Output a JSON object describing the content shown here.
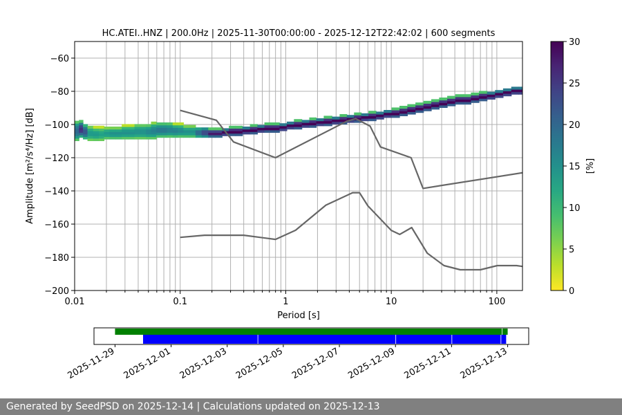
{
  "chart_data": [
    {
      "type": "heatmap",
      "title": "HC.ATEI..HNZ | 200.0Hz | 2025-11-30T00:00:00 - 2025-12-12T22:42:02 | 600 segments",
      "xlabel": "Period [s]",
      "ylabel": "Amplitude [m²/s⁴/Hz] [dB]",
      "x_scale": "log",
      "xlim": [
        0.01,
        175
      ],
      "ylim": [
        -200,
        -50
      ],
      "x_ticks": [
        0.01,
        0.1,
        1,
        10,
        100
      ],
      "x_tick_labels": [
        "0.01",
        "0.1",
        "1",
        "10",
        "100"
      ],
      "y_ticks": [
        -200,
        -180,
        -160,
        -140,
        -120,
        -100,
        -80,
        -60
      ],
      "y_tick_labels": [
        "−200",
        "−180",
        "−160",
        "−140",
        "−120",
        "−100",
        "−80",
        "−60"
      ],
      "grid": "x-major-and-minor",
      "colormap": "viridis_r",
      "colorbar": {
        "label": "[%]",
        "range": [
          0,
          30
        ],
        "ticks": [
          0,
          5,
          10,
          15,
          20,
          25,
          30
        ],
        "tick_labels": [
          "0",
          "5",
          "10",
          "15",
          "20",
          "25",
          "30"
        ]
      },
      "mode_curve": [
        {
          "period": 0.01,
          "db": -102
        },
        {
          "period": 0.02,
          "db": -104
        },
        {
          "period": 0.05,
          "db": -104
        },
        {
          "period": 0.1,
          "db": -105
        },
        {
          "period": 0.2,
          "db": -105
        },
        {
          "period": 0.5,
          "db": -103
        },
        {
          "period": 1,
          "db": -101
        },
        {
          "period": 2,
          "db": -99
        },
        {
          "period": 5,
          "db": -96
        },
        {
          "period": 10,
          "db": -93
        },
        {
          "period": 20,
          "db": -90
        },
        {
          "period": 50,
          "db": -87
        },
        {
          "period": 175,
          "db": -82
        }
      ],
      "high_noise_model": [
        {
          "period": 0.1,
          "db": -91.5
        },
        {
          "period": 0.22,
          "db": -97.4
        },
        {
          "period": 0.32,
          "db": -110.5
        },
        {
          "period": 0.8,
          "db": -120
        },
        {
          "period": 3.8,
          "db": -98
        },
        {
          "period": 4.6,
          "db": -96.5
        },
        {
          "period": 6.3,
          "db": -101
        },
        {
          "period": 7.9,
          "db": -113.5
        },
        {
          "period": 15.4,
          "db": -120
        },
        {
          "period": 20,
          "db": -138.5
        },
        {
          "period": 354.8,
          "db": -126
        }
      ],
      "low_noise_model": [
        {
          "period": 0.1,
          "db": -168
        },
        {
          "period": 0.17,
          "db": -166.7
        },
        {
          "period": 0.4,
          "db": -166.7
        },
        {
          "period": 0.8,
          "db": -169.2
        },
        {
          "period": 1.24,
          "db": -163.7
        },
        {
          "period": 2.4,
          "db": -148.6
        },
        {
          "period": 4.3,
          "db": -141.1
        },
        {
          "period": 5.0,
          "db": -141.1
        },
        {
          "period": 6.0,
          "db": -149
        },
        {
          "period": 10,
          "db": -163.8
        },
        {
          "period": 12,
          "db": -166.2
        },
        {
          "period": 15.6,
          "db": -162.1
        },
        {
          "period": 21.9,
          "db": -177.5
        },
        {
          "period": 31.6,
          "db": -185
        },
        {
          "period": 45,
          "db": -187.5
        },
        {
          "period": 70,
          "db": -187.5
        },
        {
          "period": 101,
          "db": -185
        },
        {
          "period": 154,
          "db": -185
        },
        {
          "period": 175,
          "db": -185.5
        }
      ],
      "heat_bins": [
        {
          "period": 0.0105,
          "dbmin": -109,
          "dbmax": -100,
          "pct": 20
        },
        {
          "period": 0.0115,
          "dbmin": -107,
          "dbmax": -100,
          "pct": 26
        },
        {
          "period": 0.0125,
          "dbmin": -108,
          "dbmax": -102,
          "pct": 22
        },
        {
          "period": 0.014,
          "dbmin": -109,
          "dbmax": -103,
          "pct": 14
        },
        {
          "period": 0.016,
          "dbmin": -109,
          "dbmax": -104,
          "pct": 14
        },
        {
          "period": 0.018,
          "dbmin": -109,
          "dbmax": -104,
          "pct": 13
        },
        {
          "period": 0.02,
          "dbmin": -108,
          "dbmax": -104,
          "pct": 14
        },
        {
          "period": 0.023,
          "dbmin": -108,
          "dbmax": -104,
          "pct": 15
        },
        {
          "period": 0.026,
          "dbmin": -108,
          "dbmax": -104,
          "pct": 15
        },
        {
          "period": 0.03,
          "dbmin": -108,
          "dbmax": -103,
          "pct": 15
        },
        {
          "period": 0.034,
          "dbmin": -108,
          "dbmax": -103,
          "pct": 15
        },
        {
          "period": 0.04,
          "dbmin": -108,
          "dbmax": -102,
          "pct": 15
        },
        {
          "period": 0.045,
          "dbmin": -108,
          "dbmax": -102,
          "pct": 15
        },
        {
          "period": 0.05,
          "dbmin": -108,
          "dbmax": -102,
          "pct": 16
        },
        {
          "period": 0.056,
          "dbmin": -108,
          "dbmax": -101,
          "pct": 17
        },
        {
          "period": 0.063,
          "dbmin": -107,
          "dbmax": -101,
          "pct": 18
        },
        {
          "period": 0.07,
          "dbmin": -107,
          "dbmax": -101,
          "pct": 18
        },
        {
          "period": 0.08,
          "dbmin": -107,
          "dbmax": -101,
          "pct": 17
        },
        {
          "period": 0.09,
          "dbmin": -107,
          "dbmax": -102,
          "pct": 17
        },
        {
          "period": 0.1,
          "dbmin": -107,
          "dbmax": -102,
          "pct": 16
        },
        {
          "period": 0.115,
          "dbmin": -107,
          "dbmax": -103,
          "pct": 15
        },
        {
          "period": 0.13,
          "dbmin": -107,
          "dbmax": -103,
          "pct": 15
        },
        {
          "period": 0.15,
          "dbmin": -107,
          "dbmax": -104,
          "pct": 20
        },
        {
          "period": 0.17,
          "dbmin": -107,
          "dbmax": -104,
          "pct": 24
        },
        {
          "period": 0.2,
          "dbmin": -107,
          "dbmax": -105,
          "pct": 28
        },
        {
          "period": 0.23,
          "dbmin": -107,
          "dbmax": -105,
          "pct": 28
        },
        {
          "period": 0.27,
          "dbmin": -106,
          "dbmax": -105,
          "pct": 30
        },
        {
          "period": 0.31,
          "dbmin": -106,
          "dbmax": -104,
          "pct": 30
        },
        {
          "period": 0.36,
          "dbmin": -106,
          "dbmax": -104,
          "pct": 30
        },
        {
          "period": 0.42,
          "dbmin": -105,
          "dbmax": -104,
          "pct": 30
        },
        {
          "period": 0.5,
          "dbmin": -105,
          "dbmax": -103,
          "pct": 30
        },
        {
          "period": 0.58,
          "dbmin": -104,
          "dbmax": -103,
          "pct": 30
        },
        {
          "period": 0.68,
          "dbmin": -104,
          "dbmax": -102,
          "pct": 30
        },
        {
          "period": 0.8,
          "dbmin": -104,
          "dbmax": -102,
          "pct": 30
        },
        {
          "period": 0.95,
          "dbmin": -103,
          "dbmax": -102,
          "pct": 30
        },
        {
          "period": 1.1,
          "dbmin": -102,
          "dbmax": -101,
          "pct": 30
        },
        {
          "period": 1.3,
          "dbmin": -102,
          "dbmax": -100,
          "pct": 30
        },
        {
          "period": 1.55,
          "dbmin": -101,
          "dbmax": -100,
          "pct": 30
        },
        {
          "period": 1.8,
          "dbmin": -101,
          "dbmax": -99,
          "pct": 30
        },
        {
          "period": 2.1,
          "dbmin": -100,
          "dbmax": -99,
          "pct": 30
        },
        {
          "period": 2.5,
          "dbmin": -100,
          "dbmax": -98,
          "pct": 30
        },
        {
          "period": 3.0,
          "dbmin": -99,
          "dbmax": -98,
          "pct": 30
        },
        {
          "period": 3.5,
          "dbmin": -99,
          "dbmax": -97,
          "pct": 30
        },
        {
          "period": 4.1,
          "dbmin": -98,
          "dbmax": -97,
          "pct": 30
        },
        {
          "period": 4.8,
          "dbmin": -98,
          "dbmax": -96,
          "pct": 30
        },
        {
          "period": 5.6,
          "dbmin": -97,
          "dbmax": -96,
          "pct": 30
        },
        {
          "period": 6.6,
          "dbmin": -97,
          "dbmax": -95,
          "pct": 30
        },
        {
          "period": 7.8,
          "dbmin": -96,
          "dbmax": -95,
          "pct": 30
        },
        {
          "period": 9.2,
          "dbmin": -95,
          "dbmax": -94,
          "pct": 30
        },
        {
          "period": 11,
          "dbmin": -95,
          "dbmax": -93,
          "pct": 30
        },
        {
          "period": 13,
          "dbmin": -94,
          "dbmax": -92,
          "pct": 30
        },
        {
          "period": 15.5,
          "dbmin": -93,
          "dbmax": -91,
          "pct": 30
        },
        {
          "period": 18.5,
          "dbmin": -92,
          "dbmax": -90,
          "pct": 30
        },
        {
          "period": 22,
          "dbmin": -91,
          "dbmax": -89,
          "pct": 30
        },
        {
          "period": 26,
          "dbmin": -90,
          "dbmax": -88,
          "pct": 30
        },
        {
          "period": 31,
          "dbmin": -89,
          "dbmax": -87,
          "pct": 30
        },
        {
          "period": 37,
          "dbmin": -88,
          "dbmax": -86,
          "pct": 30
        },
        {
          "period": 44,
          "dbmin": -87,
          "dbmax": -85,
          "pct": 30
        },
        {
          "period": 52,
          "dbmin": -87,
          "dbmax": -85,
          "pct": 30
        },
        {
          "period": 62,
          "dbmin": -86,
          "dbmax": -84,
          "pct": 30
        },
        {
          "period": 74,
          "dbmin": -85,
          "dbmax": -83,
          "pct": 30
        },
        {
          "period": 88,
          "dbmin": -84,
          "dbmax": -83,
          "pct": 30
        },
        {
          "period": 105,
          "dbmin": -83,
          "dbmax": -82,
          "pct": 30
        },
        {
          "period": 125,
          "dbmin": -82,
          "dbmax": -81,
          "pct": 30
        },
        {
          "period": 150,
          "dbmin": -81,
          "dbmax": -80,
          "pct": 30
        },
        {
          "period": 170,
          "dbmin": -81,
          "dbmax": -80,
          "pct": 30
        }
      ]
    },
    {
      "type": "timeline",
      "x_ticks": [
        "2025-11-29",
        "2025-12-01",
        "2025-12-03",
        "2025-12-05",
        "2025-12-07",
        "2025-12-09",
        "2025-12-11",
        "2025-12-13"
      ],
      "xlim": [
        "2025-11-28T06:00",
        "2025-12-13T18:00"
      ],
      "colors": {
        "data": "#008000",
        "psd": "#0000ff"
      },
      "data_spans": [
        [
          "2025-11-29T00:00",
          "2025-12-12T19:00"
        ],
        [
          "2025-12-12T19:30",
          "2025-12-13T00:00"
        ]
      ],
      "psd_spans": [
        [
          "2025-11-30T00:00",
          "2025-12-04T02:00"
        ],
        [
          "2025-12-04T02:30",
          "2025-12-09T00:00"
        ],
        [
          "2025-12-09T00:30",
          "2025-12-11T00:00"
        ],
        [
          "2025-12-11T00:30",
          "2025-12-12T18:00"
        ],
        [
          "2025-12-12T18:30",
          "2025-12-12T22:42"
        ]
      ]
    }
  ],
  "footer": {
    "text": "Generated by SeedPSD on 2025-12-14 | Calculations updated on 2025-12-13"
  }
}
